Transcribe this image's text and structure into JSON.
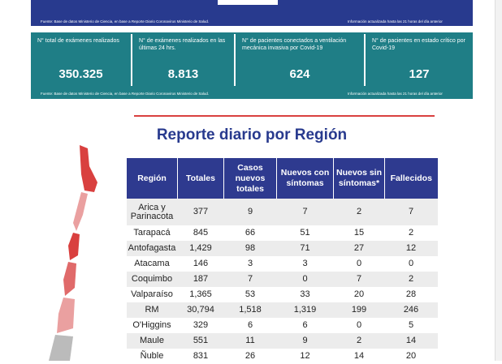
{
  "top_source": {
    "left": "Fuente: Base de datos Ministerio de Ciencia, en base a Reporte Diario Coronavirus Ministerio de Salud.",
    "right": "Información actualizada hasta las 21 horas del día anterior"
  },
  "stats": [
    {
      "label": "N° total de exámenes realizados",
      "value": "350.325"
    },
    {
      "label": "N° de exámenes realizados en las últimas 24 hrs.",
      "value": "8.813"
    },
    {
      "label": "N° de pacientes conectados a ventilación mecánica invasiva por Covid-19",
      "value": "624"
    },
    {
      "label": "N° de pacientes en estado crítico por Covid-19",
      "value": "127"
    }
  ],
  "stats_source": {
    "left": "Fuente: Base de datos Ministerio de Ciencia, en base a Reporte Diario Coronavirus Ministerio de Salud.",
    "right": "Información actualizada hasta las 21 horas del día anterior"
  },
  "title": "Reporte diario por Región",
  "table": {
    "header": [
      "Región",
      "Totales",
      "Casos nuevos totales",
      "Nuevos con síntomas",
      "Nuevos sin síntomas*",
      "Fallecidos"
    ],
    "rows": [
      [
        "Arica y Parinacota",
        "377",
        "9",
        "7",
        "2",
        "7"
      ],
      [
        "Tarapacá",
        "845",
        "66",
        "51",
        "15",
        "2"
      ],
      [
        "Antofagasta",
        "1,429",
        "98",
        "71",
        "27",
        "12"
      ],
      [
        "Atacama",
        "146",
        "3",
        "3",
        "0",
        "0"
      ],
      [
        "Coquimbo",
        "187",
        "7",
        "0",
        "7",
        "2"
      ],
      [
        "Valparaíso",
        "1,365",
        "53",
        "33",
        "20",
        "28"
      ],
      [
        "RM",
        "30,794",
        "1,518",
        "1,319",
        "199",
        "246"
      ],
      [
        "O'Higgins",
        "329",
        "6",
        "6",
        "0",
        "5"
      ],
      [
        "Maule",
        "551",
        "11",
        "9",
        "2",
        "14"
      ],
      [
        "Ñuble",
        "831",
        "26",
        "12",
        "14",
        "20"
      ]
    ]
  }
}
